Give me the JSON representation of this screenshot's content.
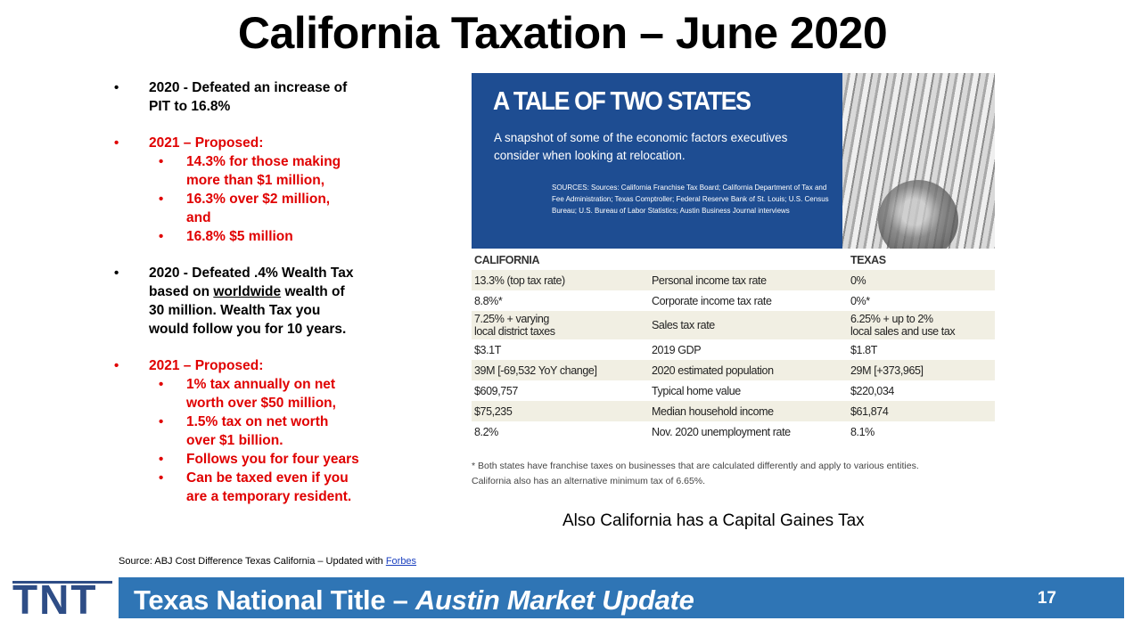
{
  "title": "California Taxation – June 2020",
  "bullets": [
    {
      "color": "black",
      "lines": [
        "2020 - Defeated an increase of",
        "PIT to 16.8%"
      ],
      "subs": []
    },
    {
      "color": "red",
      "lines": [
        "2021 – Proposed:"
      ],
      "subs": [
        [
          "14.3% for those making",
          "more than $1 million,"
        ],
        [
          "16.3% over $2 million,",
          "and"
        ],
        [
          "16.8% $5 million"
        ]
      ]
    },
    {
      "color": "black",
      "lines": [
        "2020 - Defeated .4% Wealth Tax",
        "based on worldwide wealth of",
        "30 million. Wealth Tax you",
        "would follow you for 10 years."
      ],
      "subs": []
    },
    {
      "color": "red",
      "lines": [
        "2021 – Proposed:"
      ],
      "subs": [
        [
          "1% tax annually on net",
          "worth over $50 million,"
        ],
        [
          "1.5% tax on net worth",
          "over $1 billion."
        ],
        [
          "Follows you for four years"
        ],
        [
          "Can be taxed even if you",
          "are a  temporary resident."
        ]
      ]
    }
  ],
  "bullet_marker": "•",
  "infographic": {
    "heading": "A TALE OF TWO STATES",
    "subheading": "A snapshot of some of the economic factors executives consider when looking at relocation.",
    "sources": "SOURCES: Sources: California Franchise Tax Board; California Department of Tax and Fee Administration; Texas Comptroller; Federal Reserve Bank of St. Louis; U.S. Census Bureau; U.S. Bureau of Labor Statistics; Austin Business Journal interviews",
    "col_left": "CALIFORNIA",
    "col_right": "TEXAS",
    "rows": [
      {
        "ca": "13.3% (top tax rate)",
        "label": "Personal income tax rate",
        "tx": "0%"
      },
      {
        "ca": "8.8%*",
        "label": "Corporate income tax rate",
        "tx": "0%*"
      },
      {
        "ca": "7.25% + varying\nlocal district taxes",
        "label": "Sales tax rate",
        "tx": "6.25% + up to 2%\nlocal sales and use tax"
      },
      {
        "ca": "$3.1T",
        "label": "2019 GDP",
        "tx": "$1.8T"
      },
      {
        "ca": "39M [-69,532 YoY change]",
        "label": "2020 estimated population",
        "tx": "29M [+373,965]"
      },
      {
        "ca": "$609,757",
        "label": "Typical home value",
        "tx": "$220,034"
      },
      {
        "ca": "$75,235",
        "label": "Median household income",
        "tx": "$61,874"
      },
      {
        "ca": "8.2%",
        "label": "Nov. 2020 unemployment rate",
        "tx": "8.1%"
      }
    ],
    "footnote_1": "* Both states have franchise taxes on businesses that are calculated differently and apply to various entities.",
    "footnote_2": "California also has an alternative minimum tax of 6.65%."
  },
  "also_note": "Also California has a Capital Gaines Tax",
  "source": {
    "prefix": "Source: ABJ Cost Difference Texas California – Updated with ",
    "link": "Forbes"
  },
  "footer": {
    "logo": "TNT",
    "title_plain": "Texas National Title – ",
    "title_italic": "Austin Market Update",
    "page_number": "17",
    "bar_color": "#2f75b5"
  }
}
